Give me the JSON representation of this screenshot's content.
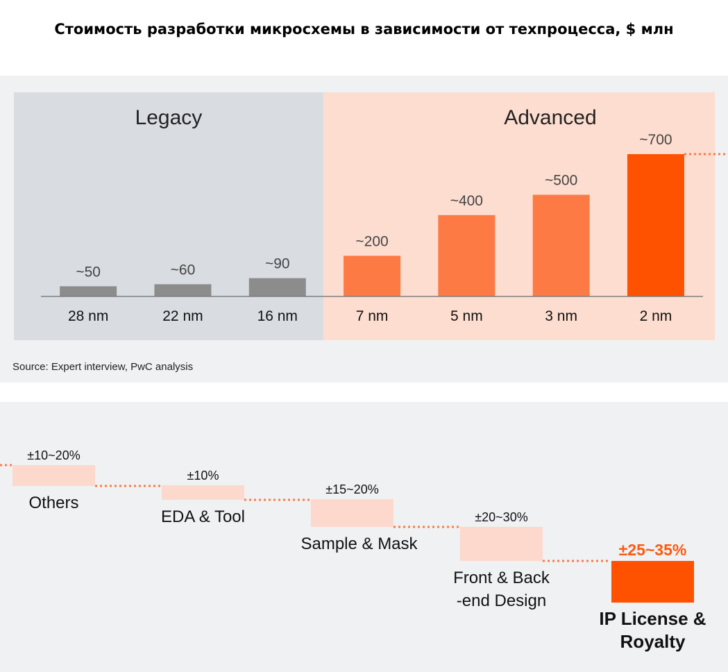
{
  "title": "Стоимость разработки микросхемы в зависимости от техпроцесса, $ млн",
  "source": "Source: Expert interview, PwC analysis",
  "colors": {
    "legacy_bg": "#d9dce1",
    "advanced_bg": "#fdddd0",
    "legacy_bar": "#8c8c8c",
    "advanced_bar": "#fe7a45",
    "highlight_bar": "#fe5200",
    "breakdown_bar": "#fdd8cc",
    "dotted": "#fb7a45",
    "axis": "#7f7f7f",
    "highlight_text": "#fb5a10"
  },
  "chart_data": [
    {
      "type": "bar",
      "title": "Стоимость разработки микросхемы в зависимости от техпроцесса, $ млн",
      "groups": [
        {
          "name": "Legacy",
          "categories": [
            "28 nm",
            "22 nm",
            "16 nm"
          ]
        },
        {
          "name": "Advanced",
          "categories": [
            "7 nm",
            "5 nm",
            "3 nm",
            "2 nm"
          ]
        }
      ],
      "categories": [
        "28 nm",
        "22 nm",
        "16 nm",
        "7 nm",
        "5 nm",
        "3 nm",
        "2 nm"
      ],
      "values": [
        50,
        60,
        90,
        200,
        400,
        500,
        700
      ],
      "labels": [
        "~50",
        "~60",
        "~90",
        "~200",
        "~400",
        "~500",
        "~700"
      ],
      "ylim": [
        0,
        700
      ],
      "xlabel": "",
      "ylabel": "",
      "grid": false
    },
    {
      "type": "bar",
      "subtype": "waterfall",
      "title": "",
      "categories": [
        "Others",
        "EDA & Tool",
        "Sample & Mask",
        "Front & Back -end Design",
        "IP License & Royalty"
      ],
      "labels": [
        "±10~20%",
        "±10%",
        "±15~20%",
        "±20~30%",
        "±25~35%"
      ],
      "ranges": [
        [
          10,
          20
        ],
        [
          10,
          10
        ],
        [
          15,
          20
        ],
        [
          20,
          30
        ],
        [
          25,
          35
        ]
      ],
      "highlighted": "IP License & Royalty"
    }
  ]
}
